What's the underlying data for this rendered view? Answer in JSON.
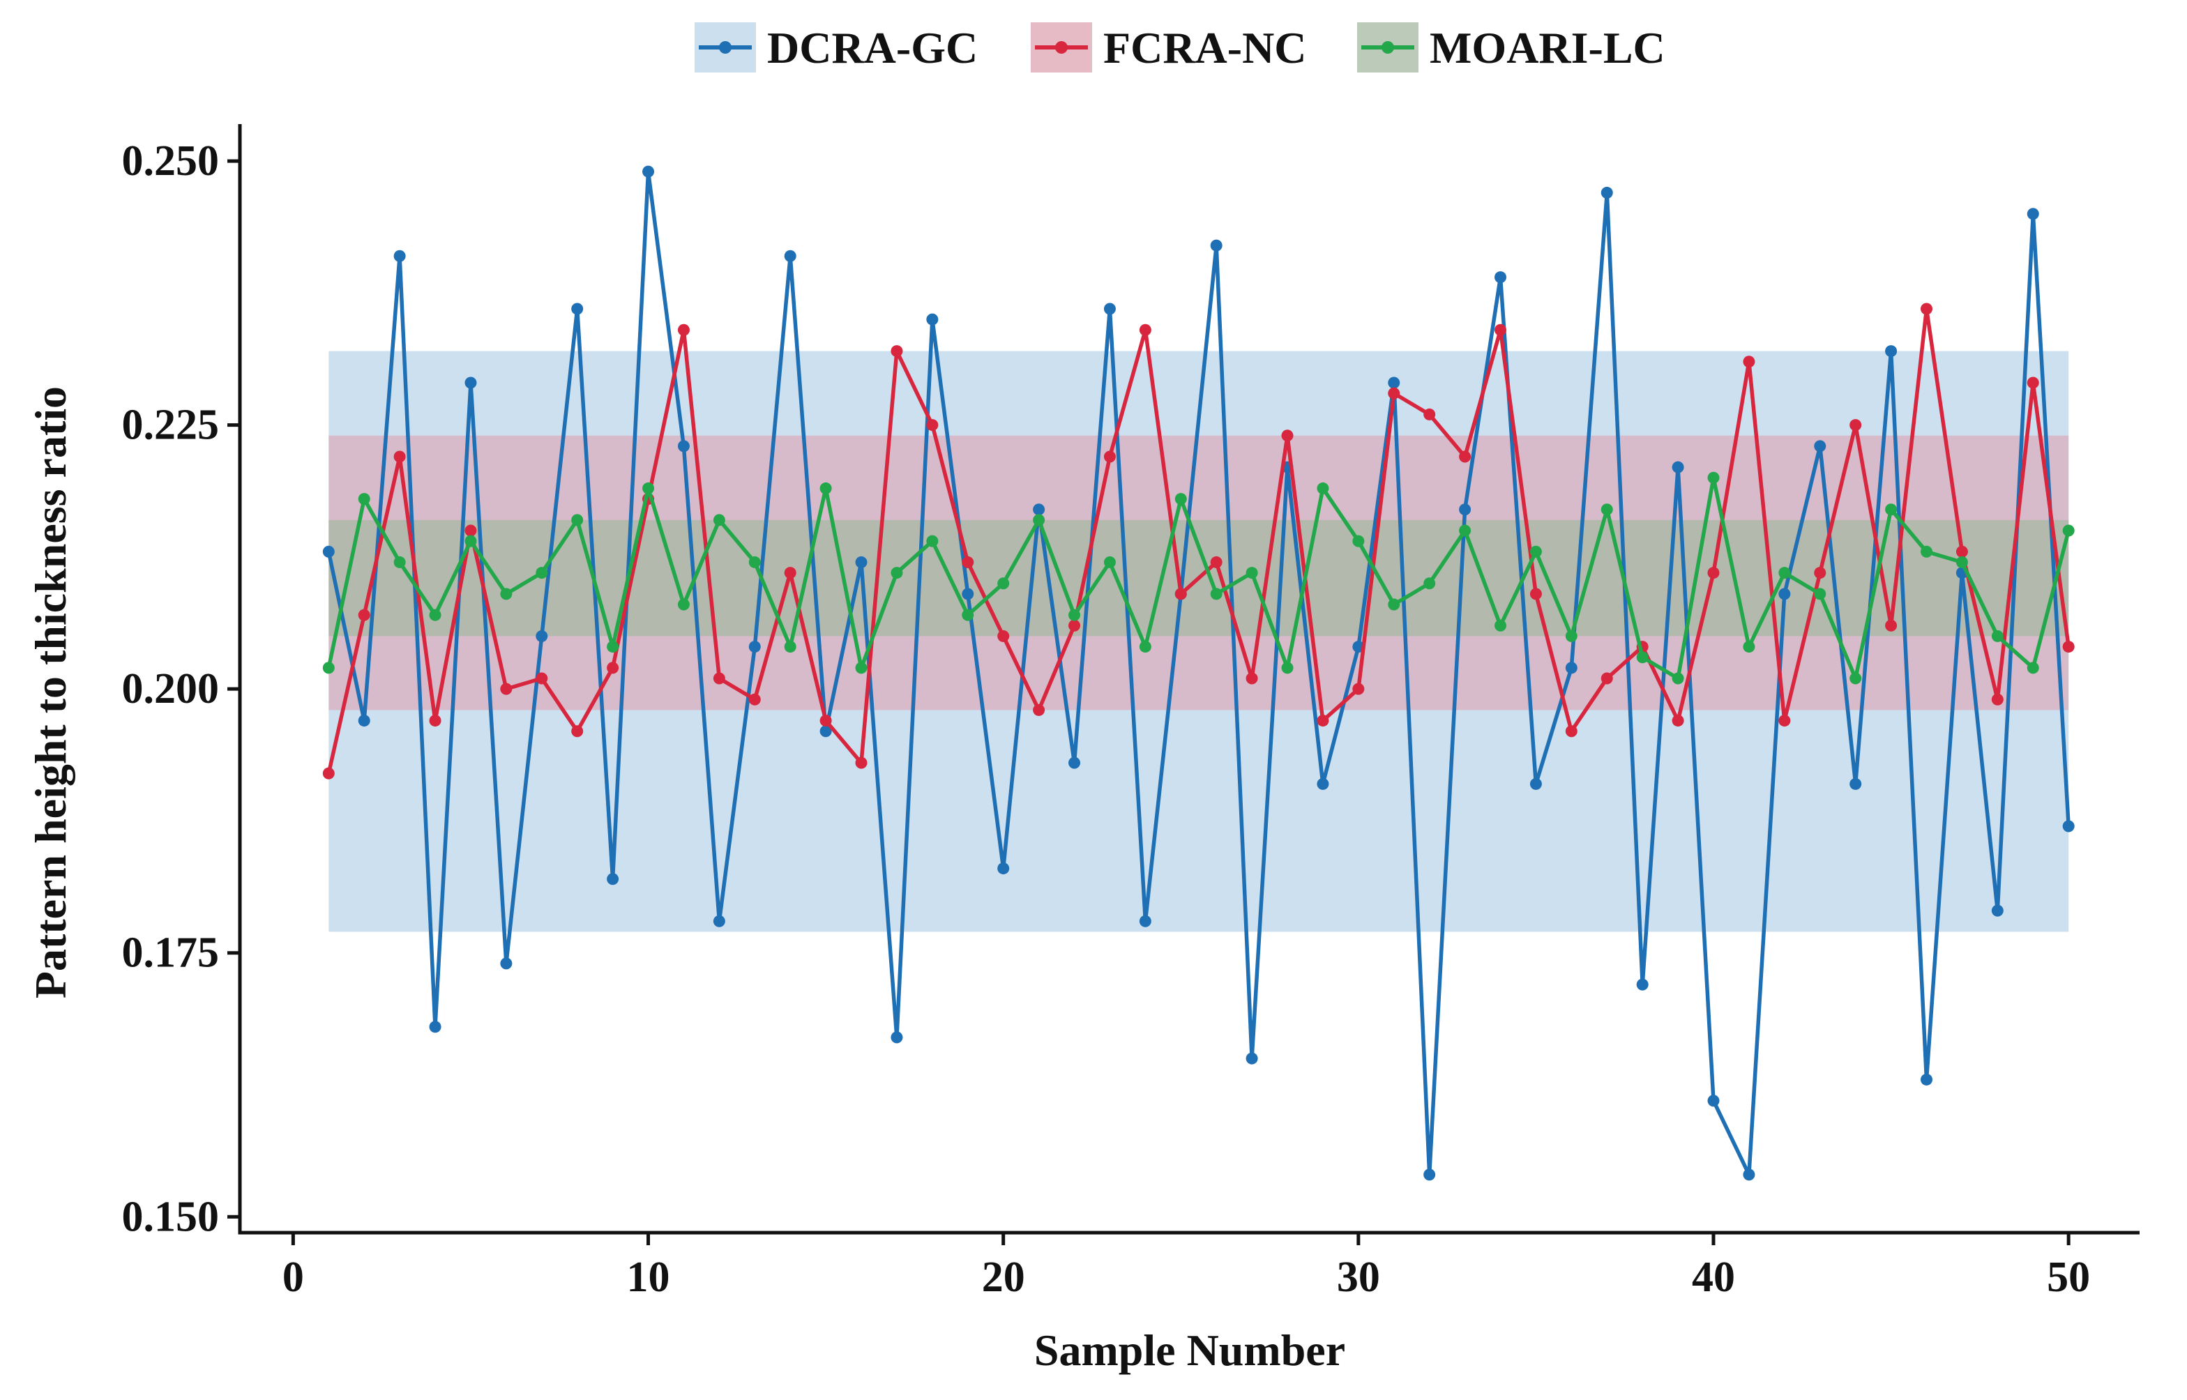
{
  "chart_data": {
    "type": "line",
    "title": "",
    "xlabel": "Sample Number",
    "ylabel": "Pattern height to thickness ratio",
    "xlim": [
      -1.5,
      52
    ],
    "ylim": [
      0.1485,
      0.2535
    ],
    "xticks": [
      0,
      10,
      20,
      30,
      40,
      50
    ],
    "yticks": [
      0.15,
      0.175,
      0.2,
      0.225,
      0.25
    ],
    "xtick_labels": [
      "0",
      "10",
      "20",
      "30",
      "40",
      "50"
    ],
    "ytick_labels": [
      "0.150",
      "0.175",
      "0.200",
      "0.225",
      "0.250"
    ],
    "legend_position": "top-center",
    "x": [
      1,
      2,
      3,
      4,
      5,
      6,
      7,
      8,
      9,
      10,
      11,
      12,
      13,
      14,
      15,
      16,
      17,
      18,
      19,
      20,
      21,
      22,
      23,
      24,
      25,
      26,
      27,
      28,
      29,
      30,
      31,
      32,
      33,
      34,
      35,
      36,
      37,
      38,
      39,
      40,
      41,
      42,
      43,
      44,
      45,
      46,
      47,
      48,
      49,
      50
    ],
    "series": [
      {
        "name": "DCRA-GC",
        "color": "#1f6fb5",
        "band_color": "#b9d4ea",
        "band": [
          0.177,
          0.232
        ],
        "values": [
          0.213,
          0.197,
          0.241,
          0.168,
          0.229,
          0.174,
          0.205,
          0.236,
          0.182,
          0.249,
          0.223,
          0.178,
          0.204,
          0.241,
          0.196,
          0.212,
          0.167,
          0.235,
          0.209,
          0.183,
          0.217,
          0.193,
          0.236,
          0.178,
          0.209,
          0.242,
          0.165,
          0.221,
          0.191,
          0.204,
          0.229,
          0.154,
          0.217,
          0.239,
          0.191,
          0.202,
          0.247,
          0.172,
          0.221,
          0.161,
          0.154,
          0.209,
          0.223,
          0.191,
          0.232,
          0.163,
          0.211,
          0.179,
          0.245,
          0.187
        ]
      },
      {
        "name": "FCRA-NC",
        "color": "#d7263d",
        "band_color": "#dfa4b3",
        "band": [
          0.198,
          0.224
        ],
        "values": [
          0.192,
          0.207,
          0.222,
          0.197,
          0.215,
          0.2,
          0.201,
          0.196,
          0.202,
          0.218,
          0.234,
          0.201,
          0.199,
          0.211,
          0.197,
          0.193,
          0.232,
          0.225,
          0.212,
          0.205,
          0.198,
          0.206,
          0.222,
          0.234,
          0.209,
          0.212,
          0.201,
          0.224,
          0.197,
          0.2,
          0.228,
          0.226,
          0.222,
          0.234,
          0.209,
          0.196,
          0.201,
          0.204,
          0.197,
          0.211,
          0.231,
          0.197,
          0.211,
          0.225,
          0.206,
          0.236,
          0.213,
          0.199,
          0.229,
          0.204
        ]
      },
      {
        "name": "MOARI-LC",
        "color": "#22a84a",
        "band_color": "#a6b8a3",
        "band": [
          0.205,
          0.216
        ],
        "values": [
          0.202,
          0.218,
          0.212,
          0.207,
          0.214,
          0.209,
          0.211,
          0.216,
          0.204,
          0.219,
          0.208,
          0.216,
          0.212,
          0.204,
          0.219,
          0.202,
          0.211,
          0.214,
          0.207,
          0.21,
          0.216,
          0.207,
          0.212,
          0.204,
          0.218,
          0.209,
          0.211,
          0.202,
          0.219,
          0.214,
          0.208,
          0.21,
          0.215,
          0.206,
          0.213,
          0.205,
          0.217,
          0.203,
          0.201,
          0.22,
          0.204,
          0.211,
          0.209,
          0.201,
          0.217,
          0.213,
          0.212,
          0.205,
          0.202,
          0.215
        ]
      }
    ]
  }
}
